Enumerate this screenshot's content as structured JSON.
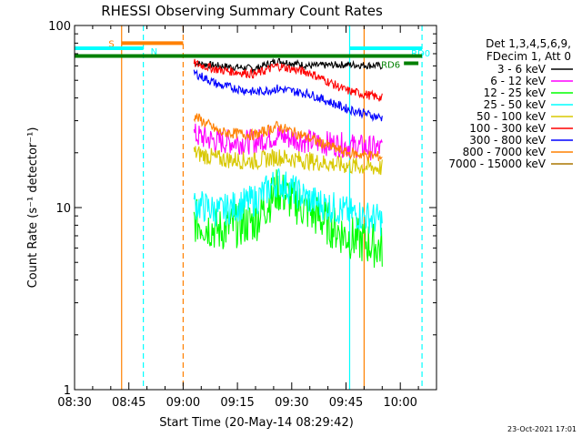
{
  "chart_data": {
    "type": "line",
    "title": "RHESSI Observing Summary Count Rates",
    "xlabel": "Start Time (20-May-14 08:29:42)",
    "ylabel": "Count Rate (s⁻¹ detector⁻¹)",
    "y_scale": "log",
    "ylim": [
      1,
      100
    ],
    "xlim": [
      "08:30",
      "10:10"
    ],
    "x_ticks": [
      "08:30",
      "08:45",
      "09:00",
      "09:15",
      "09:30",
      "09:45",
      "10:00"
    ],
    "y_ticks": [
      "1",
      "10",
      "100"
    ],
    "legend": {
      "placement": "right",
      "header": [
        "Det 1,3,4,5,6,9,",
        "FDecim 1, Att 0"
      ]
    },
    "series": [
      {
        "name": "3 - 6 keV",
        "color": "#000000",
        "x": [
          "09:03",
          "09:10",
          "09:20",
          "09:26",
          "09:35",
          "09:45",
          "09:55"
        ],
        "values": [
          62,
          60,
          58,
          64,
          60,
          61,
          60
        ]
      },
      {
        "name": "6 - 12 keV",
        "color": "#ff00ff",
        "x": [
          "09:03",
          "09:10",
          "09:20",
          "09:26",
          "09:35",
          "09:45",
          "09:55"
        ],
        "values": [
          25,
          23,
          23,
          25,
          23,
          22,
          21
        ]
      },
      {
        "name": "12 - 25 keV",
        "color": "#00ff00",
        "x": [
          "09:03",
          "09:10",
          "09:20",
          "09:26",
          "09:35",
          "09:45",
          "09:55"
        ],
        "values": [
          8.5,
          7.5,
          8.5,
          12.5,
          9.5,
          7,
          6
        ]
      },
      {
        "name": "25 - 50 keV",
        "color": "#00ffff",
        "x": [
          "09:03",
          "09:10",
          "09:20",
          "09:26",
          "09:35",
          "09:45",
          "09:55"
        ],
        "values": [
          10.5,
          9.5,
          11,
          14,
          11,
          9.5,
          8.5
        ]
      },
      {
        "name": "50 - 100 keV",
        "color": "#d8c800",
        "x": [
          "09:03",
          "09:10",
          "09:20",
          "09:26",
          "09:35",
          "09:45",
          "09:55"
        ],
        "values": [
          20,
          18.5,
          18,
          19,
          18,
          17,
          16.5
        ]
      },
      {
        "name": "100 - 300 keV",
        "color": "#ff0000",
        "x": [
          "09:03",
          "09:10",
          "09:20",
          "09:26",
          "09:35",
          "09:45",
          "09:55"
        ],
        "values": [
          62,
          57,
          54,
          60,
          55,
          44,
          40
        ]
      },
      {
        "name": "300 - 800 keV",
        "color": "#0000ff",
        "x": [
          "09:03",
          "09:10",
          "09:20",
          "09:26",
          "09:35",
          "09:45",
          "09:55"
        ],
        "values": [
          55,
          47,
          43,
          45,
          42,
          35,
          31
        ]
      },
      {
        "name": "800 - 7000 keV",
        "color": "#ff8000",
        "x": [
          "09:03",
          "09:10",
          "09:20",
          "09:26",
          "09:35",
          "09:45",
          "09:55"
        ],
        "values": [
          32,
          26,
          25,
          28,
          24,
          20,
          19
        ]
      },
      {
        "name": "7000 - 15000 keV",
        "color": "#aa7700",
        "x": [],
        "values": []
      }
    ],
    "orbit_bars": [
      {
        "label": "S",
        "color": "#ff8000",
        "start": "08:43",
        "end": "09:00",
        "level": 80
      },
      {
        "label": "N",
        "color": "#00ffff",
        "start": "08:30",
        "end": "08:49",
        "level": 75
      },
      {
        "label": "RD0",
        "color": "#00ffff",
        "start": "09:46",
        "end": "10:06",
        "level": 75
      },
      {
        "label": "RD6",
        "color": "#008000",
        "start": "08:30",
        "end": "10:06",
        "level": 68
      },
      {
        "label": "",
        "color": "#008000",
        "start": "10:01",
        "end": "10:05",
        "level": 62
      }
    ],
    "vertical_markers": [
      {
        "color": "#ff8000",
        "style": "solid",
        "time": "08:43"
      },
      {
        "color": "#00ffff",
        "style": "dashed",
        "time": "08:49"
      },
      {
        "color": "#ff8000",
        "style": "dashed",
        "time": "09:00"
      },
      {
        "color": "#00ffff",
        "style": "solid",
        "time": "09:46"
      },
      {
        "color": "#ff8000",
        "style": "solid",
        "time": "09:50"
      },
      {
        "color": "#00ffff",
        "style": "dashed",
        "time": "10:06"
      }
    ],
    "footer_date": "23-Oct-2021 17:01"
  }
}
